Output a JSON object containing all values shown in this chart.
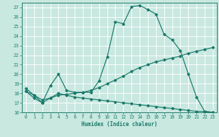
{
  "xlabel": "Humidex (Indice chaleur)",
  "xlim": [
    -0.5,
    23.5
  ],
  "ylim": [
    16,
    27.5
  ],
  "yticks": [
    16,
    17,
    18,
    19,
    20,
    21,
    22,
    23,
    24,
    25,
    26,
    27
  ],
  "xticks": [
    0,
    1,
    2,
    3,
    4,
    5,
    6,
    7,
    8,
    9,
    10,
    11,
    12,
    13,
    14,
    15,
    16,
    17,
    18,
    19,
    20,
    21,
    22,
    23
  ],
  "bg_color": "#c8e8e0",
  "grid_color": "#ffffff",
  "line_color": "#1a7a6a",
  "series": [
    {
      "x": [
        0,
        1,
        2,
        3,
        4,
        5,
        6,
        7,
        8,
        9,
        10,
        11,
        12,
        13,
        14,
        15,
        16,
        17,
        18,
        19,
        20,
        21,
        22,
        23
      ],
      "y": [
        18.5,
        17.8,
        17.0,
        18.8,
        20.0,
        18.3,
        18.1,
        18.1,
        18.1,
        19.3,
        21.8,
        25.5,
        25.3,
        27.1,
        27.2,
        26.8,
        26.3,
        24.2,
        23.6,
        22.5,
        20.0,
        17.6,
        16.1,
        16.0
      ]
    },
    {
      "x": [
        0,
        1,
        2,
        3,
        4,
        5,
        6,
        7,
        8,
        9,
        10,
        11,
        12,
        13,
        14,
        15,
        16,
        17,
        18,
        19,
        20,
        21,
        22,
        23
      ],
      "y": [
        18.2,
        17.5,
        17.0,
        17.5,
        17.8,
        17.9,
        18.0,
        18.1,
        18.3,
        18.6,
        19.0,
        19.4,
        19.8,
        20.3,
        20.7,
        21.0,
        21.3,
        21.5,
        21.7,
        21.9,
        22.2,
        22.4,
        22.6,
        22.8
      ]
    },
    {
      "x": [
        0,
        1,
        2,
        3,
        4,
        5,
        6,
        7,
        8,
        9,
        10,
        11,
        12,
        13,
        14,
        15,
        16,
        17,
        18,
        19,
        20,
        21,
        22,
        23
      ],
      "y": [
        18.2,
        17.8,
        17.3,
        17.5,
        18.0,
        17.8,
        17.6,
        17.5,
        17.4,
        17.3,
        17.2,
        17.1,
        17.0,
        16.9,
        16.8,
        16.7,
        16.6,
        16.5,
        16.4,
        16.3,
        16.2,
        16.1,
        16.1,
        16.0
      ]
    }
  ]
}
